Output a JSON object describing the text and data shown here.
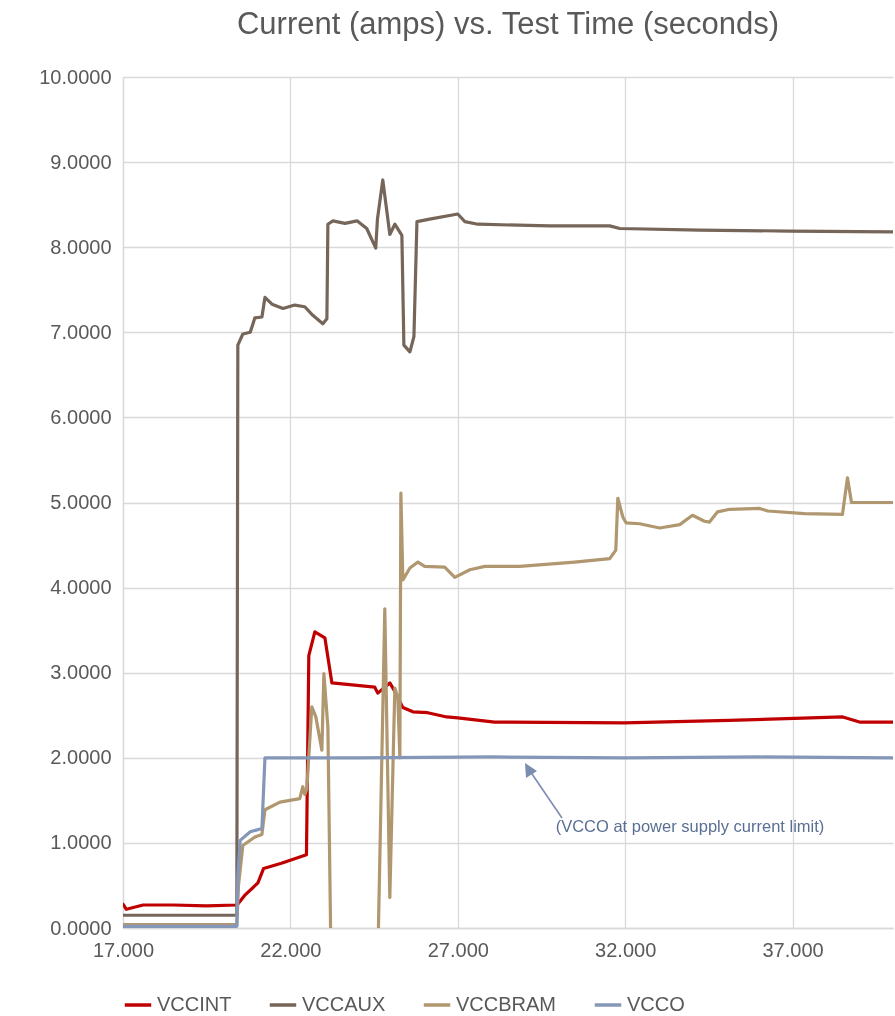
{
  "chart_data": {
    "type": "line",
    "title": "Current (amps) vs. Test Time (seconds)",
    "xlim": [
      17,
      40
    ],
    "xticks": [
      {
        "value": 17,
        "label": "17.000"
      },
      {
        "value": 22,
        "label": "22.000"
      },
      {
        "value": 27,
        "label": "27.000"
      },
      {
        "value": 32,
        "label": "32.000"
      },
      {
        "value": 37,
        "label": "37.000"
      }
    ],
    "ylim": [
      0,
      10
    ],
    "yticks": [
      {
        "value": 0,
        "label": "0.0000"
      },
      {
        "value": 1,
        "label": "1.0000"
      },
      {
        "value": 2,
        "label": "2.0000"
      },
      {
        "value": 3,
        "label": "3.0000"
      },
      {
        "value": 4,
        "label": "4.0000"
      },
      {
        "value": 5,
        "label": "5.0000"
      },
      {
        "value": 6,
        "label": "6.0000"
      },
      {
        "value": 7,
        "label": "7.0000"
      },
      {
        "value": 8,
        "label": "8.0000"
      },
      {
        "value": 9,
        "label": "9.0000"
      },
      {
        "value": 10,
        "label": "10.0000"
      }
    ],
    "grid": true,
    "legend": "bottom",
    "annotations": [
      "(VCCO at power supply current limit)"
    ],
    "series": [
      {
        "name": "VCCINT",
        "color": "#c00000",
        "x": [
          17,
          17.1,
          17.6,
          18.5,
          19.5,
          20.4,
          20.45,
          20.65,
          21.03,
          21.2,
          21.73,
          22.48,
          22.55,
          22.73,
          23.03,
          23.24,
          24.52,
          24.61,
          24.97,
          25.12,
          25.36,
          25.66,
          26.1,
          26.67,
          27.0,
          28.1,
          31.97,
          35.1,
          38.5,
          39.0,
          40
        ],
        "values": [
          0.28,
          0.22,
          0.27,
          0.27,
          0.26,
          0.27,
          0.29,
          0.39,
          0.53,
          0.7,
          0.76,
          0.86,
          3.2,
          3.48,
          3.41,
          2.88,
          2.83,
          2.76,
          2.88,
          2.78,
          2.59,
          2.54,
          2.53,
          2.48,
          2.47,
          2.42,
          2.41,
          2.44,
          2.48,
          2.42,
          2.42
        ]
      },
      {
        "name": "VCCAUX",
        "color": "#766559",
        "x": [
          17,
          20.4,
          20.43,
          20.58,
          20.8,
          20.94,
          21.15,
          21.24,
          21.45,
          21.78,
          22.13,
          22.43,
          22.67,
          22.97,
          23.09,
          23.12,
          23.27,
          23.63,
          23.99,
          24.28,
          24.55,
          24.6,
          24.76,
          24.97,
          25.12,
          25.33,
          25.39,
          25.57,
          25.69,
          25.78,
          26.16,
          27.0,
          27.21,
          27.6,
          29.75,
          31.54,
          31.84,
          34.22,
          36.9,
          40
        ],
        "values": [
          0.15,
          0.15,
          6.85,
          6.98,
          7.0,
          7.17,
          7.18,
          7.41,
          7.33,
          7.28,
          7.32,
          7.3,
          7.2,
          7.1,
          7.16,
          8.27,
          8.31,
          8.28,
          8.31,
          8.22,
          7.99,
          8.33,
          8.79,
          8.15,
          8.27,
          8.14,
          6.85,
          6.77,
          6.95,
          8.3,
          8.33,
          8.39,
          8.3,
          8.27,
          8.25,
          8.25,
          8.22,
          8.2,
          8.19,
          8.18
        ]
      },
      {
        "name": "VCCBRAM",
        "color": "#b0976f",
        "x": [
          17,
          20.4,
          20.45,
          20.58,
          20.94,
          21.15,
          21.24,
          21.69,
          22.28,
          22.37,
          22.43,
          22.49,
          22.64,
          22.76,
          22.94,
          23.0,
          23.12,
          23.18,
          23.2,
          24.6,
          24.63,
          24.82,
          24.97,
          25.12,
          25.21,
          25.27,
          25.3,
          25.36,
          25.57,
          25.81,
          26.01,
          26.61,
          26.91,
          27.36,
          27.81,
          28.85,
          30.49,
          31.54,
          31.72,
          31.78,
          31.93,
          32.03,
          32.43,
          33.03,
          33.63,
          34.01,
          34.37,
          34.52,
          34.76,
          35.12,
          36.02,
          36.26,
          37.36,
          38.49,
          38.64,
          38.76,
          40
        ],
        "values": [
          0.04,
          0.04,
          0.5,
          0.97,
          1.07,
          1.1,
          1.39,
          1.48,
          1.52,
          1.66,
          1.57,
          1.63,
          2.6,
          2.48,
          2.09,
          2.99,
          2.36,
          0.6,
          0,
          null,
          0,
          3.75,
          0.36,
          2.82,
          2.7,
          2.0,
          5.11,
          4.09,
          4.23,
          4.3,
          4.25,
          4.24,
          4.12,
          4.21,
          4.25,
          4.25,
          4.3,
          4.34,
          4.44,
          5.05,
          4.83,
          4.76,
          4.75,
          4.7,
          4.74,
          4.85,
          4.78,
          4.77,
          4.89,
          4.92,
          4.93,
          4.9,
          4.87,
          4.86,
          5.29,
          5.0,
          5.0
        ]
      },
      {
        "name": "VCCO",
        "color": "#8497b9",
        "x": [
          17,
          20.4,
          20.43,
          20.5,
          20.8,
          21.15,
          21.24,
          24.0,
          28.0,
          32.0,
          36.0,
          40
        ],
        "values": [
          0.02,
          0.02,
          0.6,
          1.03,
          1.13,
          1.17,
          2.0,
          2.0,
          2.01,
          2.0,
          2.01,
          2.0
        ]
      }
    ]
  }
}
